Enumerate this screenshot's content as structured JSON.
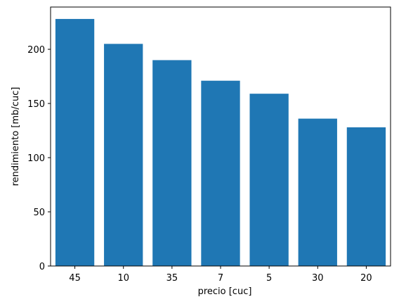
{
  "chart_data": {
    "type": "bar",
    "categories": [
      "45",
      "10",
      "35",
      "7",
      "5",
      "30",
      "20"
    ],
    "values": [
      228,
      205,
      190,
      171,
      159,
      136,
      128
    ],
    "title": "",
    "xlabel": "precio [cuc]",
    "ylabel": "rendimiento [mb/cuc]",
    "ylim": [
      0,
      239
    ],
    "yticks": [
      0,
      50,
      100,
      150,
      200
    ],
    "grid": false,
    "bar_color": "#1f77b4"
  }
}
